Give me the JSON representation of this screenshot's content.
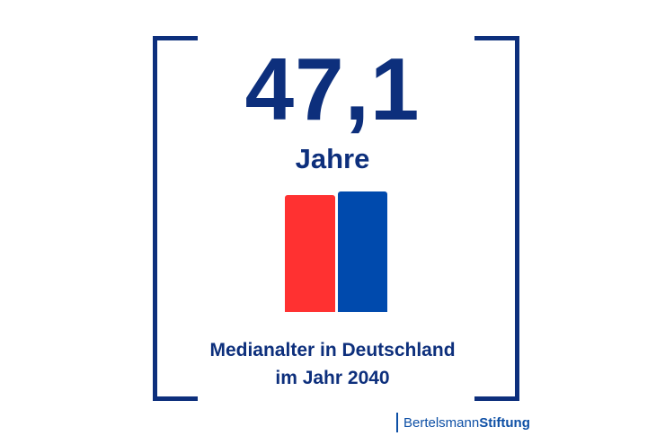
{
  "headline": {
    "value": "47,1",
    "unit": "Jahre"
  },
  "bars": {
    "colors": [
      "#ff3131",
      "#004aad"
    ]
  },
  "caption": {
    "line1": "Medianalter in Deutschland",
    "line2": "im Jahr 2040"
  },
  "brand": {
    "part1": "Bertelsmann",
    "part2": "Stiftung",
    "color": "#0d4fa5"
  },
  "colors": {
    "primary": "#0d2f7c",
    "background": "#ffffff"
  }
}
